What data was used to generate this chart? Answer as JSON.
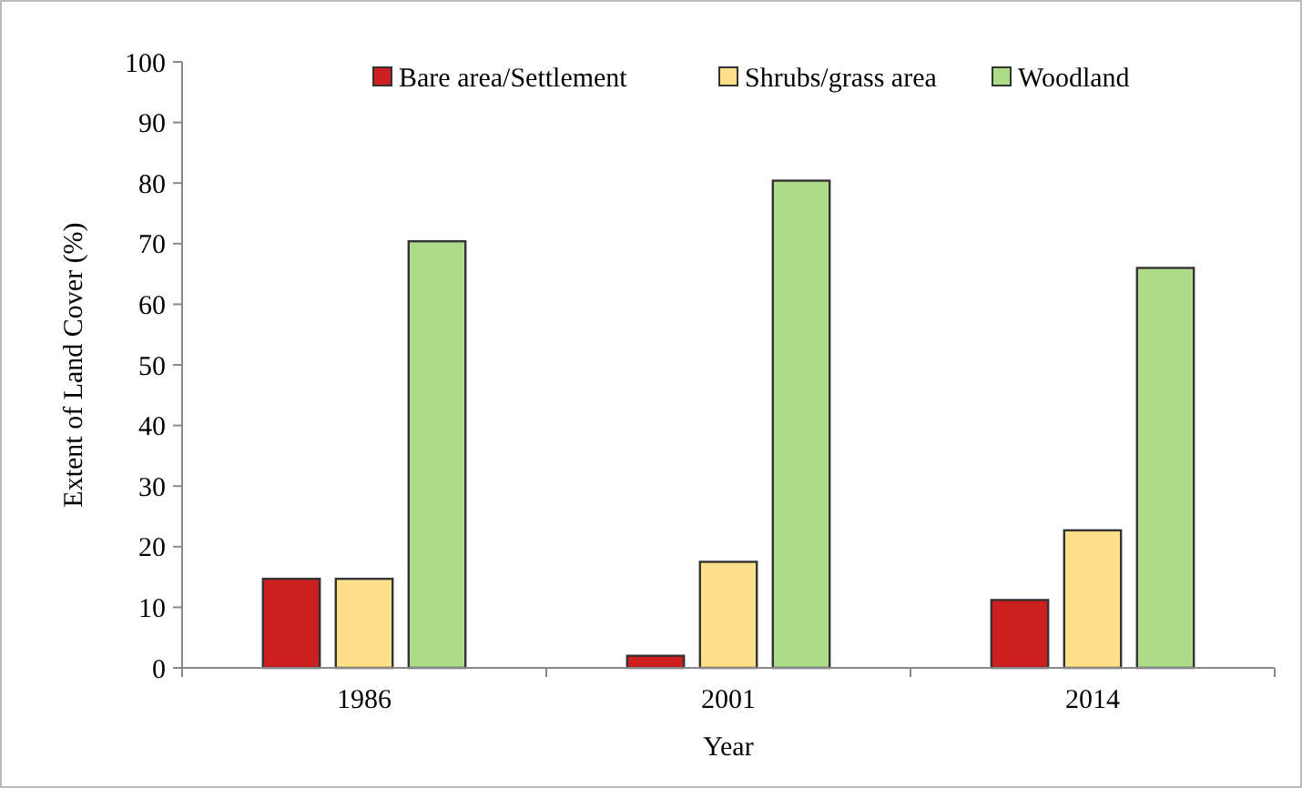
{
  "chart_data": {
    "type": "bar",
    "xlabel": "Year",
    "ylabel": "Extent of Land Cover (%)",
    "categories": [
      "1986",
      "2001",
      "2014"
    ],
    "series": [
      {
        "name": "Bare area/Settlement",
        "color": "#cc1f1f",
        "values": [
          14.7,
          2.0,
          11.2
        ]
      },
      {
        "name": "Shrubs/grass area",
        "color": "#ffe08a",
        "values": [
          14.7,
          17.5,
          22.7
        ]
      },
      {
        "name": "Woodland",
        "color": "#addb8a",
        "values": [
          70.4,
          80.4,
          66.0
        ]
      }
    ],
    "ylim": [
      0,
      100
    ],
    "yticks": [
      0,
      10,
      20,
      30,
      40,
      50,
      60,
      70,
      80,
      90,
      100
    ],
    "grid": false,
    "legend": "top"
  }
}
